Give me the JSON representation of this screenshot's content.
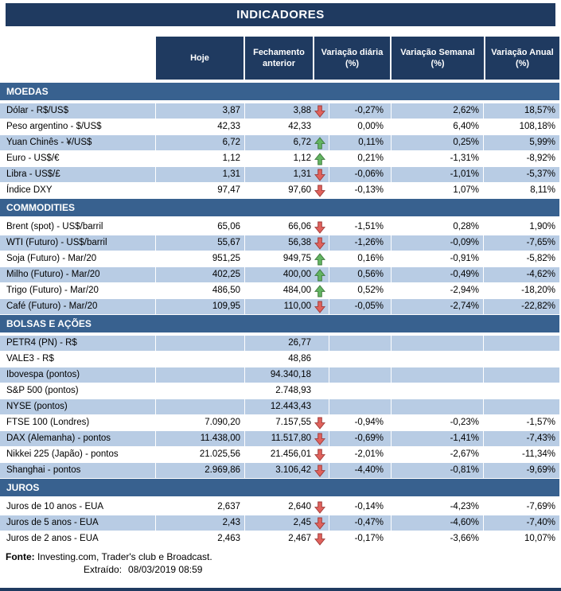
{
  "title": "INDICADORES",
  "columns": [
    "Hoje",
    "Fechamento anterior",
    "Variação diária (%)",
    "Variação Semanal (%)",
    "Variação Anual (%)"
  ],
  "colors": {
    "header_navy": "#1F3A60",
    "section_blue": "#38618F",
    "row_shade": "#B8CCE4",
    "arrow_up_green": "#63B462",
    "arrow_down_red": "#E0625C"
  },
  "sections": [
    {
      "id": "moedas",
      "name": "MOEDAS",
      "rows": [
        {
          "label": "Dólar - R$/US$",
          "hoje": "3,87",
          "fech": "3,88",
          "arrow": "down",
          "vd": "-0,27%",
          "vs": "2,62%",
          "va": "18,57%",
          "shaded": true
        },
        {
          "label": "Peso argentino - $/US$",
          "hoje": "42,33",
          "fech": "42,33",
          "arrow": "none",
          "vd": "0,00%",
          "vs": "6,40%",
          "va": "108,18%",
          "shaded": false
        },
        {
          "label": "Yuan Chinês - ¥/US$",
          "hoje": "6,72",
          "fech": "6,72",
          "arrow": "up",
          "vd": "0,11%",
          "vs": "0,25%",
          "va": "5,99%",
          "shaded": true
        },
        {
          "label": "Euro - US$/€",
          "hoje": "1,12",
          "fech": "1,12",
          "arrow": "up",
          "vd": "0,21%",
          "vs": "-1,31%",
          "va": "-8,92%",
          "shaded": false
        },
        {
          "label": "Libra - US$/£",
          "hoje": "1,31",
          "fech": "1,31",
          "arrow": "down",
          "vd": "-0,06%",
          "vs": "-1,01%",
          "va": "-5,37%",
          "shaded": true
        },
        {
          "label": "Índice DXY",
          "hoje": "97,47",
          "fech": "97,60",
          "arrow": "down",
          "vd": "-0,13%",
          "vs": "1,07%",
          "va": "8,11%",
          "shaded": false
        }
      ]
    },
    {
      "id": "commodities",
      "name": "COMMODITIES",
      "rows": [
        {
          "label": "Brent (spot) - US$/barril",
          "hoje": "65,06",
          "fech": "66,06",
          "arrow": "down",
          "vd": "-1,51%",
          "vs": "0,28%",
          "va": "1,90%",
          "shaded": false
        },
        {
          "label": "WTI (Futuro) - US$/barril",
          "hoje": "55,67",
          "fech": "56,38",
          "arrow": "down",
          "vd": "-1,26%",
          "vs": "-0,09%",
          "va": "-7,65%",
          "shaded": true
        },
        {
          "label": "Soja (Futuro) - Mar/20",
          "hoje": "951,25",
          "fech": "949,75",
          "arrow": "up",
          "vd": "0,16%",
          "vs": "-0,91%",
          "va": "-5,82%",
          "shaded": false
        },
        {
          "label": "Milho (Futuro) - Mar/20",
          "hoje": "402,25",
          "fech": "400,00",
          "arrow": "up",
          "vd": "0,56%",
          "vs": "-0,49%",
          "va": "-4,62%",
          "shaded": true
        },
        {
          "label": "Trigo (Futuro) - Mar/20",
          "hoje": "486,50",
          "fech": "484,00",
          "arrow": "up",
          "vd": "0,52%",
          "vs": "-2,94%",
          "va": "-18,20%",
          "shaded": false
        },
        {
          "label": "Café (Futuro) - Mar/20",
          "hoje": "109,95",
          "fech": "110,00",
          "arrow": "down",
          "vd": "-0,05%",
          "vs": "-2,74%",
          "va": "-22,82%",
          "shaded": true
        }
      ]
    },
    {
      "id": "bolsas-e-acoes",
      "name": "BOLSAS E AÇÕES",
      "rows": [
        {
          "label": "PETR4 (PN) - R$",
          "hoje": "",
          "fech": "26,77",
          "arrow": "none",
          "vd": "",
          "vs": "",
          "va": "",
          "shaded": true
        },
        {
          "label": "VALE3 - R$",
          "hoje": "",
          "fech": "48,86",
          "arrow": "none",
          "vd": "",
          "vs": "",
          "va": "",
          "shaded": false
        },
        {
          "label": "Ibovespa (pontos)",
          "hoje": "",
          "fech": "94.340,18",
          "arrow": "none",
          "vd": "",
          "vs": "",
          "va": "",
          "shaded": true
        },
        {
          "label": "S&P 500 (pontos)",
          "hoje": "",
          "fech": "2.748,93",
          "arrow": "none",
          "vd": "",
          "vs": "",
          "va": "",
          "shaded": false
        },
        {
          "label": "NYSE (pontos)",
          "hoje": "",
          "fech": "12.443,43",
          "arrow": "none",
          "vd": "",
          "vs": "",
          "va": "",
          "shaded": true
        },
        {
          "label": "FTSE 100 (Londres)",
          "hoje": "7.090,20",
          "fech": "7.157,55",
          "arrow": "down",
          "vd": "-0,94%",
          "vs": "-0,23%",
          "va": "-1,57%",
          "shaded": false
        },
        {
          "label": "DAX (Alemanha) - pontos",
          "hoje": "11.438,00",
          "fech": "11.517,80",
          "arrow": "down",
          "vd": "-0,69%",
          "vs": "-1,41%",
          "va": "-7,43%",
          "shaded": true
        },
        {
          "label": "Nikkei 225 (Japão) - pontos",
          "hoje": "21.025,56",
          "fech": "21.456,01",
          "arrow": "down",
          "vd": "-2,01%",
          "vs": "-2,67%",
          "va": "-11,34%",
          "shaded": false
        },
        {
          "label": "Shanghai - pontos",
          "hoje": "2.969,86",
          "fech": "3.106,42",
          "arrow": "down",
          "vd": "-4,40%",
          "vs": "-0,81%",
          "va": "-9,69%",
          "shaded": true
        }
      ]
    },
    {
      "id": "juros",
      "name": "JUROS",
      "rows": [
        {
          "label": "Juros de 10 anos - EUA",
          "hoje": "2,637",
          "fech": "2,640",
          "arrow": "down",
          "vd": "-0,14%",
          "vs": "-4,23%",
          "va": "-7,69%",
          "shaded": false
        },
        {
          "label": "Juros de 5 anos - EUA",
          "hoje": "2,43",
          "fech": "2,45",
          "arrow": "down",
          "vd": "-0,47%",
          "vs": "-4,60%",
          "va": "-7,40%",
          "shaded": true
        },
        {
          "label": "Juros de 2 anos - EUA",
          "hoje": "2,463",
          "fech": "2,467",
          "arrow": "down",
          "vd": "-0,17%",
          "vs": "-3,66%",
          "va": "10,07%",
          "shaded": false
        }
      ]
    }
  ],
  "footer": {
    "fonte_label": "Fonte:",
    "fonte_text": " Investing.com, Trader's club e Broadcast.",
    "extraido_label": "Extraído:",
    "extraido_value": "08/03/2019 08:59"
  }
}
